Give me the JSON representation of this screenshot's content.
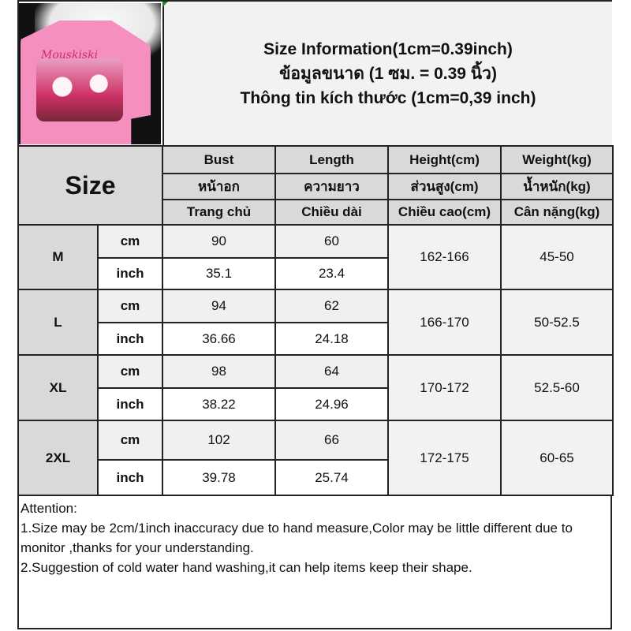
{
  "title": {
    "line1": "Size Information(1cm=0.39inch)",
    "line2": "ข้อมูลขนาด (1 ซม. = 0.39 นิ้ว)",
    "line3": "Thông tin kích thước (1cm=0,39 inch)"
  },
  "product_image": {
    "print_text": "Mouskiski"
  },
  "header": {
    "size_label": "Size",
    "columns": [
      {
        "en": "Bust",
        "th": "หน้าอก",
        "vi": "Trang chủ"
      },
      {
        "en": "Length",
        "th": "ความยาว",
        "vi": "Chiều dài"
      },
      {
        "en": "Height(cm)",
        "th": "ส่วนสูง(cm)",
        "vi": "Chiều cao(cm)"
      },
      {
        "en": "Weight(kg)",
        "th": "น้ำหนัก(kg)",
        "vi": "Cân nặng(kg)"
      }
    ]
  },
  "units": {
    "cm": "cm",
    "inch": "inch"
  },
  "rows": [
    {
      "size": "M",
      "bust_cm": "90",
      "length_cm": "60",
      "bust_inch": "35.1",
      "length_inch": "23.4",
      "height": "162-166",
      "weight": "45-50"
    },
    {
      "size": "L",
      "bust_cm": "94",
      "length_cm": "62",
      "bust_inch": "36.66",
      "length_inch": "24.18",
      "height": "166-170",
      "weight": "50-52.5"
    },
    {
      "size": "XL",
      "bust_cm": "98",
      "length_cm": "64",
      "bust_inch": "38.22",
      "length_inch": "24.96",
      "height": "170-172",
      "weight": "52.5-60"
    },
    {
      "size": "2XL",
      "bust_cm": "102",
      "length_cm": "66",
      "bust_inch": "39.78",
      "length_inch": "25.74",
      "height": "172-175",
      "weight": "60-65"
    }
  ],
  "attention": {
    "heading": "Attention:",
    "note1": "1.Size may be 2cm/1inch inaccuracy due to hand measure,Color may be little different due to monitor ,thanks for your understanding.",
    "note2": "2.Suggestion of cold water hand washing,it can help items keep their shape."
  }
}
